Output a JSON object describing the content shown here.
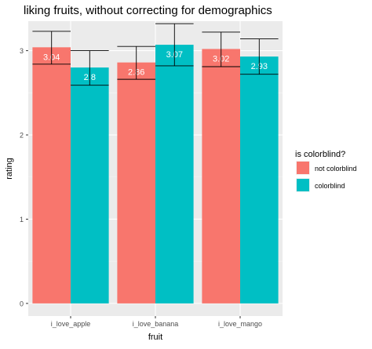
{
  "chart_data": {
    "type": "bar",
    "title": "liking fruits, without correcting for demographics",
    "xlabel": "fruit",
    "ylabel": "rating",
    "categories": [
      "i_love_apple",
      "i_love_banana",
      "i_love_mango"
    ],
    "series": [
      {
        "name": "not colorblind",
        "color": "#F8766D",
        "values": [
          3.04,
          2.86,
          3.02
        ],
        "labels": [
          "3.04",
          "2.86",
          "3.02"
        ],
        "error_low": [
          2.84,
          2.66,
          2.81
        ],
        "error_high": [
          3.23,
          3.05,
          3.22
        ]
      },
      {
        "name": "colorblind",
        "color": "#00BFC4",
        "values": [
          2.8,
          3.07,
          2.93
        ],
        "labels": [
          "2.8",
          "3.07",
          "2.93"
        ],
        "error_low": [
          2.59,
          2.82,
          2.72
        ],
        "error_high": [
          3.0,
          3.32,
          3.14
        ]
      }
    ],
    "ylim": [
      -0.15,
      3.35
    ],
    "yticks": [
      0,
      1,
      2,
      3
    ],
    "ytick_labels": [
      "0",
      "1",
      "2",
      "3"
    ],
    "grid": true,
    "legend": {
      "title": "is colorblind?",
      "position": "right",
      "entries": [
        "not colorblind",
        "colorblind"
      ]
    },
    "colors": {
      "panel_bg": "#EBEBEB",
      "grid_major": "#FFFFFF",
      "error_bar": "#000000",
      "bar_label": "#FFFFFF"
    }
  }
}
